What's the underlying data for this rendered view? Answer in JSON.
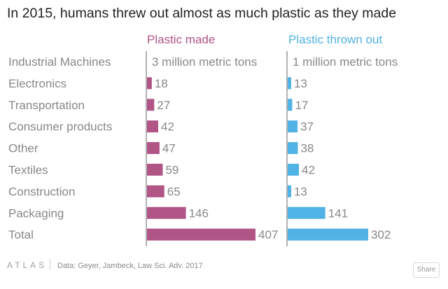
{
  "title": "In 2015, humans threw out almost as much plastic as they made",
  "footer": {
    "logo": "ATLAS",
    "source": "Data: Geyer, Jambeck, Law Sci. Adv. 2017",
    "share_label": "Share"
  },
  "colors": {
    "plastic_made": "#b15486",
    "plastic_thrown_out": "#51b2e5",
    "category_text": "#888888",
    "axis": "#666666"
  },
  "chart_data": {
    "type": "bar",
    "orientation": "horizontal",
    "title": "In 2015, humans threw out almost as much plastic as they made",
    "categories": [
      "Industrial Machines",
      "Electronics",
      "Transportation",
      "Consumer products",
      "Other",
      "Textiles",
      "Construction",
      "Packaging",
      "Total"
    ],
    "series": [
      {
        "name": "Plastic made",
        "values": [
          3,
          18,
          27,
          42,
          47,
          59,
          65,
          146,
          407
        ],
        "labels": [
          "3 million metric tons",
          "18",
          "27",
          "42",
          "47",
          "59",
          "65",
          "146",
          "407"
        ]
      },
      {
        "name": "Plastic thrown out",
        "values": [
          1,
          13,
          17,
          37,
          38,
          42,
          13,
          141,
          302
        ],
        "labels": [
          "1 million metric tons",
          "13",
          "17",
          "37",
          "38",
          "42",
          "13",
          "141",
          "302"
        ]
      }
    ],
    "unit": "million metric tons",
    "grid": false,
    "legend": "column headers above each panel"
  }
}
